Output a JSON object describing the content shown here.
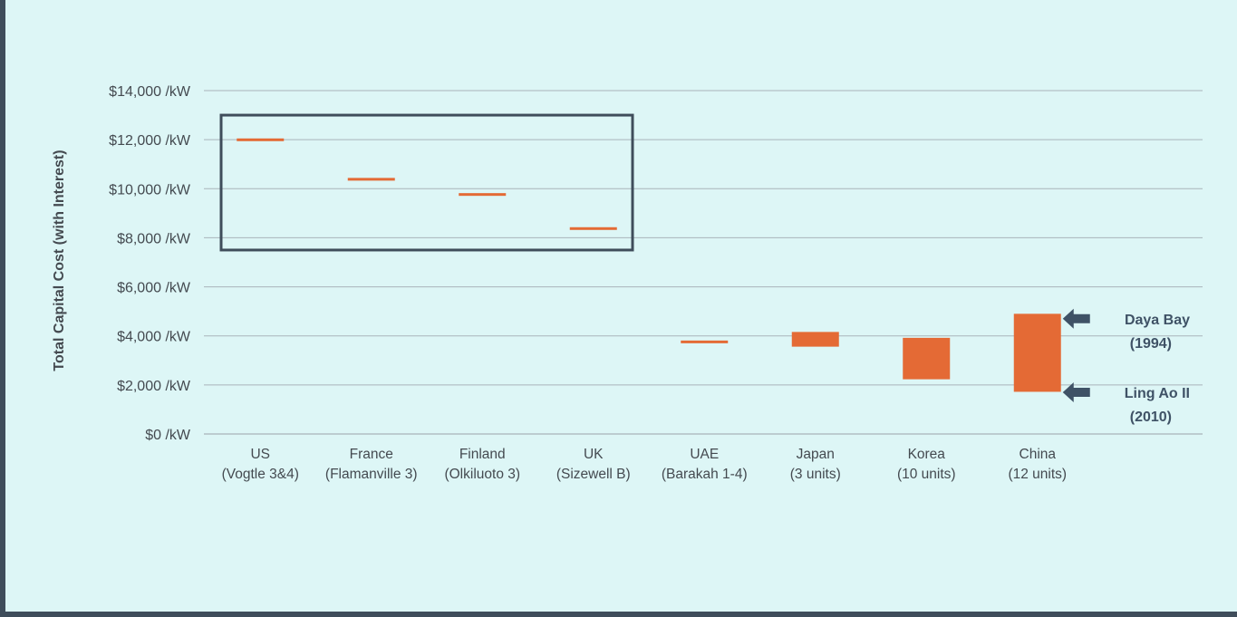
{
  "chart_data": {
    "type": "range-bar",
    "ylabel": "Total Capital Cost  (with Interest)",
    "ylim": [
      0,
      14000
    ],
    "yticks": [
      0,
      2000,
      4000,
      6000,
      8000,
      10000,
      12000,
      14000
    ],
    "ytick_labels": [
      "$0 /kW",
      "$2,000 /kW",
      "$4,000 /kW",
      "$6,000 /kW",
      "$8,000 /kW",
      "$10,000 /kW",
      "$12,000 /kW",
      "$14,000 /kW"
    ],
    "grid": true,
    "bar_color": "#e46a35",
    "categories": [
      {
        "name": "US",
        "detail": "(Vogtle 3&4)",
        "low": 11950,
        "high": 12050
      },
      {
        "name": "France",
        "detail": "(Flamanville 3)",
        "low": 10340,
        "high": 10440
      },
      {
        "name": "Finland",
        "detail": "(Olkiluoto 3)",
        "low": 9720,
        "high": 9820
      },
      {
        "name": "UK",
        "detail": "(Sizewell B)",
        "low": 8330,
        "high": 8430
      },
      {
        "name": "UAE",
        "detail": "(Barakah 1-4)",
        "low": 3710,
        "high": 3810
      },
      {
        "name": "Japan",
        "detail": "(3 units)",
        "low": 3560,
        "high": 4160
      },
      {
        "name": "Korea",
        "detail": "(10 units)",
        "low": 2230,
        "high": 3920
      },
      {
        "name": "China",
        "detail": "(12 units)",
        "low": 1720,
        "high": 4900
      }
    ],
    "highlight_box": {
      "from_category": 0,
      "to_category": 3,
      "y_low": 7500,
      "y_high": 13000,
      "color": "#3f4d5b"
    },
    "annotations": [
      {
        "category": 7,
        "y": 4700,
        "line1": "Daya Bay",
        "line2": "(1994)"
      },
      {
        "category": 7,
        "y": 1700,
        "line1": "Ling Ao II",
        "line2": "(2010)"
      }
    ],
    "annotation_color": "#3f5266"
  }
}
